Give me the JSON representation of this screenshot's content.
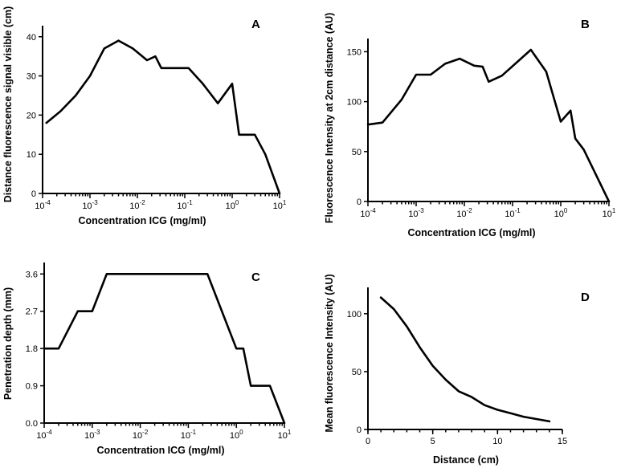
{
  "chart_data": [
    {
      "type": "line",
      "panel": "A",
      "xscale": "log",
      "xlabel": "Concentration ICG (mg/ml)",
      "ylabel": "Distance fluorescence signal visible (cm)",
      "xlim": [
        0.0001,
        10
      ],
      "ylim": [
        0,
        42
      ],
      "yticks": [
        0,
        10,
        20,
        30,
        40
      ],
      "xtick_exponents": [
        -4,
        -3,
        -2,
        -1,
        0,
        1
      ],
      "x": [
        0.00012,
        0.00024,
        0.0005,
        0.001,
        0.002,
        0.004,
        0.008,
        0.016,
        0.024,
        0.032,
        0.12,
        0.24,
        0.5,
        1.0,
        1.4,
        3.0,
        5.0,
        10.0
      ],
      "y": [
        18,
        21,
        25,
        30,
        37,
        39,
        37,
        34,
        35,
        32,
        32,
        28,
        23,
        28,
        15,
        15,
        10,
        0
      ]
    },
    {
      "type": "line",
      "panel": "B",
      "xscale": "log",
      "xlabel": "Concentration ICG (mg/ml)",
      "ylabel": "Fluorescence Intensity at 2cm distance (AU)",
      "xlim": [
        0.0001,
        10
      ],
      "ylim": [
        0,
        160
      ],
      "yticks": [
        0,
        50,
        100,
        150
      ],
      "xtick_exponents": [
        -4,
        -3,
        -2,
        -1,
        0,
        1
      ],
      "x": [
        0.0001,
        0.0002,
        0.0005,
        0.001,
        0.002,
        0.004,
        0.008,
        0.016,
        0.024,
        0.032,
        0.06,
        0.24,
        0.5,
        1.0,
        1.6,
        2.0,
        3.0,
        5.0,
        10.0
      ],
      "y": [
        77,
        79,
        102,
        127,
        127,
        138,
        143,
        136,
        135,
        120,
        126,
        152,
        130,
        80,
        91,
        63,
        52,
        30,
        0
      ]
    },
    {
      "type": "line",
      "panel": "C",
      "xscale": "log",
      "xlabel": "Concentration ICG (mg/ml)",
      "ylabel": "Penetration depth (mm)",
      "xlim": [
        0.0001,
        10
      ],
      "ylim": [
        0,
        3.8
      ],
      "yticks": [
        "0.0",
        "0.9",
        "1.8",
        "2.7",
        "3.6"
      ],
      "xtick_exponents": [
        -4,
        -3,
        -2,
        -1,
        0,
        1
      ],
      "x": [
        0.0001,
        0.0002,
        0.0005,
        0.001,
        0.002,
        0.25,
        1.0,
        1.4,
        2.0,
        5.0,
        10.0
      ],
      "y": [
        1.8,
        1.8,
        2.7,
        2.7,
        3.6,
        3.6,
        1.8,
        1.8,
        0.9,
        0.9,
        0.0
      ]
    },
    {
      "type": "line",
      "panel": "D",
      "xscale": "linear",
      "xlabel": "Distance (cm)",
      "ylabel": "Mean fluorescence Intensity (AU)",
      "xlim": [
        0,
        15
      ],
      "ylim": [
        0,
        120
      ],
      "yticks": [
        0,
        50,
        100
      ],
      "xticks": [
        0,
        5,
        10,
        15
      ],
      "x": [
        1,
        2,
        3,
        4,
        5,
        6,
        7,
        8,
        9,
        10,
        11,
        12,
        13,
        14
      ],
      "y": [
        114,
        104,
        89,
        71,
        55,
        43,
        33,
        28,
        21,
        17,
        14,
        11,
        9,
        7
      ]
    }
  ]
}
